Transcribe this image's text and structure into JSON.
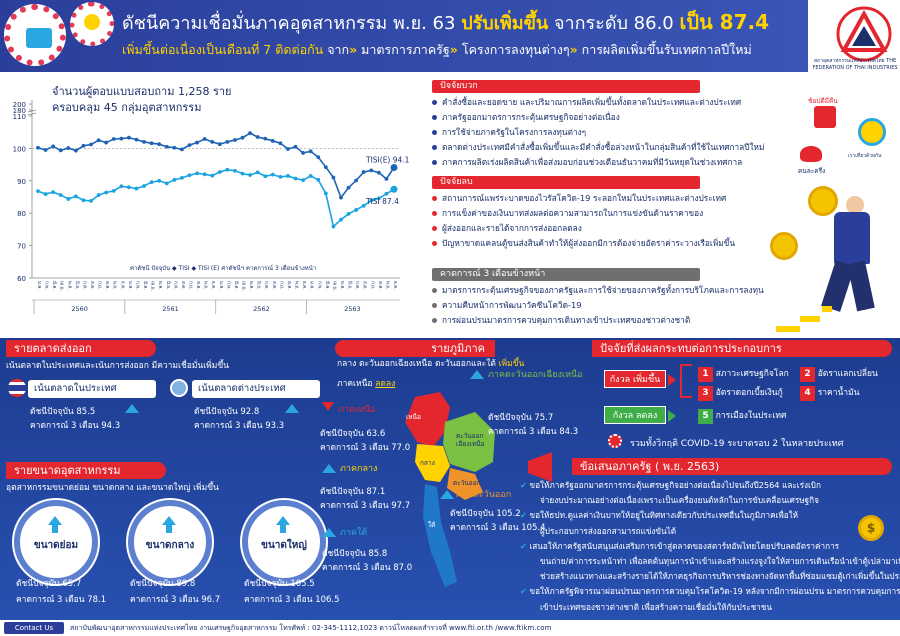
{
  "header": {
    "title_prefix": "ดัชนีความเชื่อมั่นภาคอุตสาหกรรม พ.ย. 63",
    "title_highlight": "ปรับเพิ่มขึ้น",
    "title_mid": "จากระดับ 86.0",
    "title_big": "เป็น 87.4",
    "subtitle_a": "เพิ่มขึ้นต่อเนื่องเป็นเดือนที่ 7 ติดต่อกัน",
    "subtitle_b": "จาก",
    "subtitle_c": "มาตรการภาครัฐ",
    "subtitle_d": "โครงการลงทุนต่างๆ",
    "subtitle_e": "การผลิตเพิ่มขึ้นรับเทศกาลปีใหม่",
    "logo_text": "สภาอุตสาหกรรมแห่งประเทศไทย THE FEDERATION OF THAI INDUSTRIES"
  },
  "survey": {
    "line1": "จำนวนผู้ตอบแบบสอบถาม 1,258 ราย",
    "line2": "ครอบคลุม 45 กลุ่มอุตสาหกรรม"
  },
  "chart_data": {
    "type": "line",
    "ylim": [
      60,
      200
    ],
    "yticks": [
      "60",
      "70",
      "80",
      "90",
      "100",
      "110",
      "180",
      "200"
    ],
    "ytick_values": [
      60,
      70,
      80,
      90,
      100,
      110,
      180,
      200
    ],
    "years": [
      "2560",
      "2561",
      "2562",
      "2563"
    ],
    "months_label": "ม.ค. ก.พ. มี.ค. เม.ย. พ.ค. มิ.ย. ก.ค. ส.ค. ก.ย. ต.ค. พ.ย. ธ.ค.",
    "series": [
      {
        "name": "TISI(E)",
        "color": "#1f63b5",
        "values": [
          100.2,
          99.5,
          100.6,
          99.4,
          100.1,
          99.3,
          100.8,
          101.2,
          102.5,
          101.8,
          102.9,
          103.0,
          103.3,
          102.7,
          102.0,
          101.6,
          101.3,
          100.5,
          100.2,
          99.7,
          101.0,
          101.8,
          102.9,
          102.0,
          101.3,
          102.0,
          102.6,
          103.3,
          104.7,
          103.5,
          103.0,
          102.3,
          101.6,
          99.8,
          100.5,
          98.6,
          99.1,
          97.3,
          94.2,
          91.0,
          84.8,
          87.9,
          90.1,
          92.7,
          93.2,
          92.5,
          90.6,
          94.1
        ]
      },
      {
        "name": "TISI",
        "color": "#1aa3e0",
        "values": [
          86.8,
          85.9,
          86.5,
          85.6,
          84.4,
          85.2,
          84.0,
          83.8,
          85.6,
          86.4,
          86.9,
          88.3,
          88.0,
          87.6,
          88.4,
          89.6,
          90.0,
          89.2,
          90.3,
          90.9,
          91.7,
          92.3,
          92.0,
          91.6,
          92.7,
          93.4,
          93.1,
          92.2,
          91.8,
          92.6,
          91.4,
          91.9,
          91.2,
          91.5,
          90.7,
          90.2,
          91.5,
          90.3,
          86.1,
          75.9,
          78.0,
          79.8,
          81.0,
          82.3,
          83.9,
          84.6,
          86.0,
          87.4
        ]
      }
    ],
    "end_labels": [
      "TISI(E) 94.1",
      "TISI 87.4"
    ],
    "legend": [
      "ค่าดัชนี ปัจจุบัน",
      "TISI",
      "TISI (E) ค่าดัชนีฯ คาดการณ์ 3 เดือนข้างหน้า"
    ],
    "reference_line": 100
  },
  "factors": {
    "positive_title": "ปัจจัยบวก",
    "positive": [
      "คำสั่งซื้อและยอดขาย และปริมาณการผลิตเพิ่มขึ้นทั้งตลาดในประเทศและต่างประเทศ",
      "ภาครัฐออกมาตรการกระตุ้นเศรษฐกิจอย่างต่อเนื่อง",
      "การใช้จ่ายภาครัฐในโครงการลงทุนต่างๆ",
      "ตลาดต่างประเทศมีคำสั่งซื้อเพิ่มขึ้นและมีคำสั่งซื้อล่วงหน้าในกลุ่มสินค้าที่ใช้ในเทศกาลปีใหม่",
      "ภาคการผลิตเร่งผลิตสินค้าเพื่อส่งมอบก่อนช่วงเดือนธันวาคมที่มีวันหยุดในช่วงเทศกาล"
    ],
    "negative_title": "ปัจจัยลบ",
    "negative": [
      "สถานการณ์แพร่ระบาดของไวรัสโควิด-19 ระลอกใหม่ในประเทศและต่างประเทศ",
      "การแข็งค่าของเงินบาทส่งผลต่อความสามารถในการแข่งขันด้านราคาของ",
      "ผู้ส่งออกและรายได้จากการส่งออกลดลง",
      "ปัญหาขาดแคลนตู้ขนส่งสินค้าทำให้ผู้ส่งออกมีการต้องจ่ายอัตราค่าระวางเรือเพิ่มขึ้น"
    ],
    "forecast_title": "คาดการณ์ 3 เดือนข้างหน้า",
    "forecast": [
      "มาตรการกระตุ้นเศรษฐกิจของภาครัฐและการใช้จ่ายของภาครัฐทั้งการบริโภคและการลงทุน",
      "ความคืบหน้าการพัฒนาวัคซีนโควิด-19",
      "การผ่อนปรนมาตรการควบคุมการเดินทางเข้าประเทศของชาวต่างชาติ"
    ],
    "side_labels": [
      "ช้อปดีมีคืน",
      "เราเที่ยวด้วยกัน",
      "คนละครึ่ง"
    ]
  },
  "markets": {
    "title": "รายตลาดส่งออก",
    "note": "เน้นตลาดในประเทศและเน้นการส่งออก มีความเชื่อมั่นเพิ่มขึ้น",
    "domestic": {
      "label": "เน้นตลาดในประเทศ",
      "current_label": "ดัชนีปัจจุบัน",
      "current": "85.5",
      "forecast_label": "คาดการณ์ 3 เดือน",
      "forecast": "94.3"
    },
    "export": {
      "label": "เน้นตลาดต่างประเทศ",
      "current_label": "ดัชนีปัจจุบัน",
      "current": "92.8",
      "forecast_label": "คาดการณ์ 3 เดือน",
      "forecast": "93.3"
    }
  },
  "sizes": {
    "title": "รายขนาดอุตสาหกรรม",
    "note": "อุตสาหกรรมขนาดย่อม ขนาดกลาง และขนาดใหญ่ เพิ่มขึ้น",
    "items": [
      {
        "name": "ขนาดย่อม",
        "current_label": "ดัชนีปัจจุบัน",
        "current": "65.7",
        "forecast_label": "คาดการณ์ 3 เดือน",
        "forecast": "78.1"
      },
      {
        "name": "ขนาดกลาง",
        "current_label": "ดัชนีปัจจุบัน",
        "current": "89.8",
        "forecast_label": "คาดการณ์ 3 เดือน",
        "forecast": "96.7"
      },
      {
        "name": "ขนาดใหญ่",
        "current_label": "ดัชนีปัจจุบัน",
        "current": "105.5",
        "forecast_label": "คาดการณ์ 3 เดือน",
        "forecast": "106.5"
      }
    ]
  },
  "regions": {
    "title": "รายภูมิภาค",
    "note1": "กลาง ตะวันออกเฉียงเหนือ ตะวันออกและใต้",
    "note1b": "เพิ่มขึ้น",
    "note2": "ภาคเหนือ",
    "note2b": "ลดลง",
    "north": {
      "name": "ภาคเหนือ",
      "current": "ดัชนีปัจจุบัน 63.6",
      "forecast": "คาดการณ์ 3 เดือน 77.0"
    },
    "northeast": {
      "name": "ภาคตะวันออกเฉียงเหนือ",
      "current": "ดัชนีปัจจุบัน 75.7",
      "forecast": "คาดการณ์ 3 เดือน 84.3"
    },
    "central": {
      "name": "ภาคกลาง",
      "current": "ดัชนีปัจจุบัน 87.1",
      "forecast": "คาดการณ์ 3 เดือน 97.7"
    },
    "east": {
      "name": "ภาคตะวันออก",
      "current": "ดัชนีปัจจุบัน 105.2",
      "forecast": "คาดการณ์ 3 เดือน 105.4"
    },
    "south": {
      "name": "ภาคใต้",
      "current": "ดัชนีปัจจุบัน 85.8",
      "forecast": "คาดการณ์ 3 เดือน 87.0"
    },
    "map_labels": [
      "เหนือ",
      "ตะวันออก เฉียงเหนือ",
      "กลาง",
      "ตะวันออก",
      "ใต้"
    ]
  },
  "concerns": {
    "title": "ปัจจัยที่ส่งผลกระทบต่อการประกอบการ",
    "up_tag": "กังวล เพิ่มขึ้น",
    "down_tag": "กังวล ลดลง",
    "items": [
      {
        "n": "1",
        "text": "สภาวะเศรษฐกิจโลก"
      },
      {
        "n": "2",
        "text": "อัตราแลกเปลี่ยน"
      },
      {
        "n": "3",
        "text": "อัตราดอกเบี้ยเงินกู้"
      },
      {
        "n": "4",
        "text": "ราคาน้ำมัน"
      },
      {
        "n": "5",
        "text": "การเมืองในประเทศ"
      }
    ],
    "covid": "รวมทั้งวิกฤติ COVID-19 ระบาดรอบ 2 ในหลายประเทศ"
  },
  "proposals": {
    "title": "ข้อเสนอภาครัฐ",
    "title_b": "( พ.ย. 2563)",
    "items": [
      "ขอให้ภาครัฐออกมาตรการกระตุ้นเศรษฐกิจอย่างต่อเนื่องไปจนถึงปี2564 และเร่งเบิก",
      "จ่ายงบประมาณอย่างต่อเนื่องเพราะเป็นเครื่องยนต์หลักในการขับเคลื่อนเศรษฐกิจ",
      "ขอให้ธปท.ดูแลค่าเงินบาทให้อยู่ในทิศทางเดียวกับประเทศอื่นในภูมิภาคเพื่อให้",
      "ผู้ประกอบการส่งออกสามารถแข่งขันได้",
      "เสนอให้ภาครัฐสนับสนุนส่งเสริมการเข้าสู่ตลาดของสตาร์ทอัพไทยโดยปรับลดอัตราค่าการ",
      "ขนถ่าย/ค่าการระหน้าท่า เพื่อลดต้นทุนการนำเข้าและสร้างแรงจูงใจให้สายการเดินเรือนำเข้าตู้เปล่ามาเพื่อจัดทำ",
      "ช่วยสร้างแนวทางและสร้างรายได้ให้ภาคธุรกิจการบริหารช่องทางจัดหาพื้นที่ซ่อมแซมตู้เก่าเพิ่มขึ้นในประเทศ",
      "ขอให้ภาครัฐพิจารณาผ่อนปรนมาตรการควบคุมโรคโควิด-19 หลังจากมีการผ่อนปรน มาตรการควบคุมการเดินทาง",
      "เข้าประเทศของชาวต่างชาติ เพื่อสร้างความเชื่อมั่นให้กับประชาชน"
    ]
  },
  "footer": {
    "contact": "Contact Us",
    "text": "สถาบันพัฒนาอุตสาหกรรมแห่งประเทศไทย งานเศรษฐกิจอุตสาหกรรม โทรศัพท์ : 02-345-1112,1023 ดาวน์โหลดผลสำรวจที่ www.fti.or.th /www.ftikm.com"
  }
}
